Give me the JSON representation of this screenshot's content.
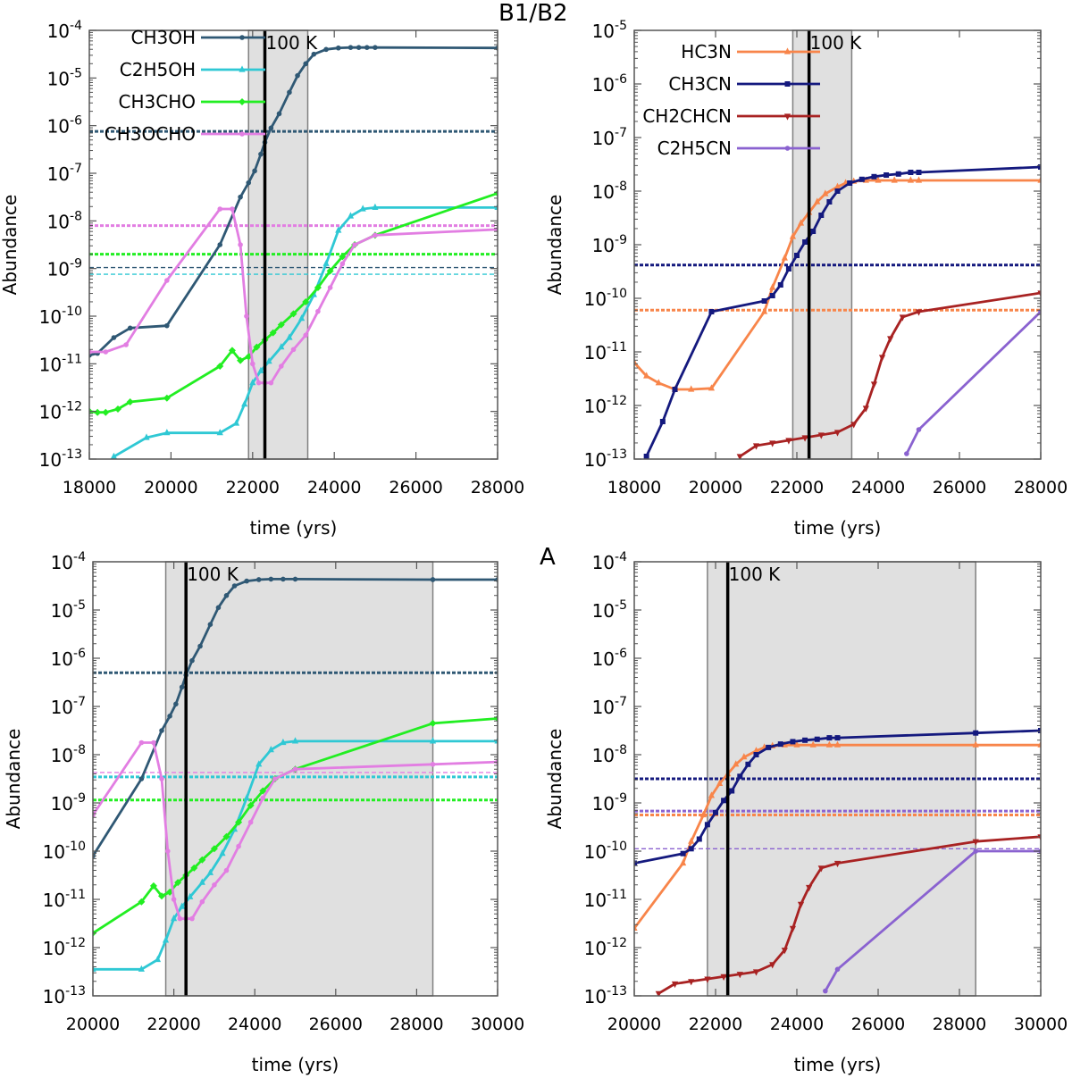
{
  "figure": {
    "group_label_top": "B1/B2",
    "group_label_bottom": "A"
  },
  "colors": {
    "CH3OH": "#2f5874",
    "C2H5OH": "#2fc8d4",
    "CH3CHO": "#22ee22",
    "CH3OCHO": "#e27ee2",
    "HC3N": "#f8854a",
    "CH3CN": "#14197e",
    "CH2CHCN": "#a82222",
    "C2H5CN": "#8a62d0",
    "shade": "#e0e0e0",
    "frame": "#555555"
  },
  "chart_data": [
    {
      "id": "top-left",
      "type": "line",
      "xlabel": "time (yrs)",
      "ylabel": "Abundance",
      "xlim": [
        18000,
        28000
      ],
      "ylim_exp": [
        -13,
        -4
      ],
      "xticks": [
        "18000",
        "20000",
        "22000",
        "24000",
        "26000",
        "28000"
      ],
      "yticks_exp": [
        "-13",
        "-12",
        "-11",
        "-10",
        "-9",
        "-8",
        "-7",
        "-6",
        "-5",
        "-4"
      ],
      "shade": [
        21900,
        23350
      ],
      "vline": 22300,
      "vline_label": "100 K",
      "legend": [
        "CH3OH",
        "C2H5OH",
        "CH3CHO",
        "CH3OCHO"
      ],
      "series": [
        {
          "name": "CH3OH",
          "x": [
            18000,
            18200,
            18600,
            19000,
            19900,
            21200,
            21700,
            21900,
            22050,
            22200,
            22300,
            22450,
            22650,
            22900,
            23100,
            23300,
            23500,
            23800,
            24100,
            24400,
            24600,
            24800,
            25000,
            28000
          ],
          "logy": [
            -10.82,
            -10.78,
            -10.45,
            -10.25,
            -10.2,
            -8.5,
            -7.5,
            -7.2,
            -6.95,
            -6.6,
            -6.35,
            -6.05,
            -5.75,
            -5.3,
            -4.95,
            -4.7,
            -4.5,
            -4.4,
            -4.37,
            -4.36,
            -4.36,
            -4.36,
            -4.36,
            -4.37
          ]
        },
        {
          "name": "C2H5OH",
          "x": [
            18600,
            19400,
            19900,
            21200,
            21600,
            21800,
            22000,
            22200,
            22400,
            22700,
            22900,
            23200,
            23500,
            23800,
            24100,
            24400,
            24700,
            25000,
            28000
          ],
          "logy": [
            -12.95,
            -12.55,
            -12.45,
            -12.45,
            -12.25,
            -11.85,
            -11.4,
            -11.15,
            -10.95,
            -10.65,
            -10.45,
            -10.05,
            -9.55,
            -8.9,
            -8.2,
            -7.9,
            -7.75,
            -7.72,
            -7.72
          ]
        },
        {
          "name": "CH3CHO",
          "x": [
            18000,
            18200,
            18400,
            18700,
            19000,
            19900,
            21200,
            21500,
            21700,
            21900,
            22100,
            22300,
            22500,
            22700,
            23000,
            23300,
            23600,
            23900,
            24200,
            24500,
            25000,
            28000
          ],
          "logy": [
            -12.0,
            -12.02,
            -12.02,
            -11.95,
            -11.8,
            -11.72,
            -11.05,
            -10.72,
            -10.93,
            -10.85,
            -10.65,
            -10.5,
            -10.35,
            -10.18,
            -9.95,
            -9.7,
            -9.4,
            -9.05,
            -8.75,
            -8.5,
            -8.3,
            -7.42
          ]
        },
        {
          "name": "CH3OCHO",
          "x": [
            18000,
            18400,
            18900,
            19900,
            21200,
            21500,
            21700,
            21850,
            22000,
            22150,
            22300,
            22450,
            22700,
            23000,
            23300,
            23600,
            23900,
            24200,
            24500,
            25000,
            28000
          ],
          "logy": [
            -10.75,
            -10.75,
            -10.6,
            -9.25,
            -7.75,
            -7.75,
            -8.5,
            -10.0,
            -11.0,
            -11.4,
            -11.4,
            -11.4,
            -11.05,
            -10.7,
            -10.4,
            -9.9,
            -9.4,
            -8.9,
            -8.5,
            -8.3,
            -8.18
          ]
        }
      ],
      "hlines": [
        {
          "series": "CH3OH",
          "logy": -6.12,
          "style": "dashed-thick"
        },
        {
          "series": "CH3OCHO",
          "logy": -8.1,
          "style": "dashed-thick"
        },
        {
          "series": "CH3CHO",
          "logy": -8.7,
          "style": "dashed-thick"
        },
        {
          "series": "CH3OH",
          "logy": -8.98,
          "style": "dashed-thin"
        },
        {
          "series": "C2H5OH",
          "logy": -9.12,
          "style": "dashed-thin"
        }
      ]
    },
    {
      "id": "top-right",
      "type": "line",
      "xlabel": "time (yrs)",
      "ylabel": "Abundance",
      "xlim": [
        18000,
        28000
      ],
      "ylim_exp": [
        -13,
        -5
      ],
      "xticks": [
        "18000",
        "20000",
        "22000",
        "24000",
        "26000",
        "28000"
      ],
      "yticks_exp": [
        "-13",
        "-12",
        "-11",
        "-10",
        "-9",
        "-8",
        "-7",
        "-6",
        "-5"
      ],
      "shade": [
        21900,
        23350
      ],
      "vline": 22300,
      "vline_label": "100 K",
      "legend": [
        "HC3N",
        "CH3CN",
        "CH2CHCN",
        "C2H5CN"
      ],
      "series": [
        {
          "name": "HC3N",
          "x": [
            18000,
            18300,
            18600,
            19000,
            19400,
            19900,
            21200,
            21400,
            21700,
            21900,
            22100,
            22300,
            22500,
            22700,
            23000,
            23200,
            23400,
            23700,
            24000,
            24400,
            24800,
            25000,
            28000
          ],
          "logy": [
            -11.2,
            -11.45,
            -11.58,
            -11.7,
            -11.7,
            -11.68,
            -10.25,
            -9.8,
            -9.25,
            -8.85,
            -8.6,
            -8.4,
            -8.2,
            -8.05,
            -7.92,
            -7.85,
            -7.82,
            -7.8,
            -7.8,
            -7.8,
            -7.8,
            -7.8,
            -7.8
          ]
        },
        {
          "name": "CH3CN",
          "x": [
            18300,
            18700,
            19000,
            19900,
            21200,
            21400,
            21600,
            21800,
            22000,
            22200,
            22400,
            22600,
            22800,
            23000,
            23300,
            23600,
            23900,
            24200,
            24500,
            24800,
            25000,
            28000
          ],
          "logy": [
            -12.95,
            -12.3,
            -11.7,
            -10.25,
            -10.05,
            -9.95,
            -9.75,
            -9.45,
            -9.2,
            -8.95,
            -8.75,
            -8.45,
            -8.2,
            -8.0,
            -7.85,
            -7.78,
            -7.73,
            -7.7,
            -7.68,
            -7.65,
            -7.65,
            -7.55
          ]
        },
        {
          "name": "CH2CHCN",
          "x": [
            20600,
            21000,
            21400,
            21800,
            22200,
            22600,
            23000,
            23400,
            23700,
            23900,
            24100,
            24300,
            24600,
            25000,
            28000
          ],
          "logy": [
            -12.95,
            -12.75,
            -12.7,
            -12.65,
            -12.6,
            -12.55,
            -12.5,
            -12.35,
            -12.05,
            -11.6,
            -11.1,
            -10.75,
            -10.35,
            -10.25,
            -9.9
          ]
        },
        {
          "name": "C2H5CN",
          "x": [
            24700,
            25000,
            28000
          ],
          "logy": [
            -12.9,
            -12.45,
            -10.25
          ]
        }
      ],
      "hlines": [
        {
          "series": "CH3CN",
          "logy": -9.38,
          "style": "dashed-thick"
        },
        {
          "series": "HC3N",
          "logy": -10.22,
          "style": "dashed-thick"
        }
      ]
    },
    {
      "id": "bottom-left",
      "type": "line",
      "xlabel": "time (yrs)",
      "ylabel": "Abundance",
      "xlim": [
        20000,
        30000
      ],
      "ylim_exp": [
        -13,
        -4
      ],
      "xticks": [
        "20000",
        "22000",
        "24000",
        "26000",
        "28000",
        "30000"
      ],
      "yticks_exp": [
        "-13",
        "-12",
        "-11",
        "-10",
        "-9",
        "-8",
        "-7",
        "-6",
        "-5",
        "-4"
      ],
      "shade": [
        21800,
        28400
      ],
      "vline": 22300,
      "vline_label": "100 K",
      "legend": [],
      "series": [
        {
          "name": "CH3OH",
          "x": [
            20000,
            21200,
            21700,
            21900,
            22050,
            22200,
            22300,
            22450,
            22650,
            22900,
            23100,
            23300,
            23500,
            23800,
            24100,
            24400,
            24700,
            25000,
            28400,
            30000
          ],
          "logy": [
            -10.1,
            -8.5,
            -7.5,
            -7.2,
            -6.95,
            -6.6,
            -6.35,
            -6.05,
            -5.75,
            -5.3,
            -4.95,
            -4.7,
            -4.5,
            -4.4,
            -4.37,
            -4.36,
            -4.36,
            -4.36,
            -4.37,
            -4.37
          ]
        },
        {
          "name": "C2H5OH",
          "x": [
            20000,
            21200,
            21600,
            21800,
            22000,
            22200,
            22400,
            22700,
            22900,
            23200,
            23500,
            23800,
            24100,
            24400,
            24700,
            25000,
            28400,
            30000
          ],
          "logy": [
            -12.45,
            -12.45,
            -12.25,
            -11.85,
            -11.4,
            -11.15,
            -10.95,
            -10.65,
            -10.45,
            -10.05,
            -9.55,
            -8.9,
            -8.2,
            -7.9,
            -7.75,
            -7.72,
            -7.72,
            -7.72
          ]
        },
        {
          "name": "CH3CHO",
          "x": [
            20000,
            21200,
            21500,
            21700,
            21900,
            22100,
            22300,
            22500,
            22700,
            23000,
            23300,
            23600,
            23900,
            24200,
            24500,
            25000,
            28400,
            30000
          ],
          "logy": [
            -11.7,
            -11.05,
            -10.72,
            -10.93,
            -10.85,
            -10.65,
            -10.5,
            -10.35,
            -10.18,
            -9.95,
            -9.7,
            -9.4,
            -9.05,
            -8.75,
            -8.5,
            -8.3,
            -7.35,
            -7.25
          ]
        },
        {
          "name": "CH3OCHO",
          "x": [
            20000,
            21200,
            21500,
            21700,
            21850,
            22000,
            22150,
            22300,
            22450,
            22700,
            23000,
            23300,
            23600,
            23900,
            24200,
            24500,
            25000,
            28400,
            30000
          ],
          "logy": [
            -9.25,
            -7.75,
            -7.75,
            -8.5,
            -10.0,
            -11.0,
            -11.4,
            -11.4,
            -11.4,
            -11.05,
            -10.7,
            -10.4,
            -9.9,
            -9.4,
            -8.9,
            -8.5,
            -8.3,
            -8.2,
            -8.15
          ]
        }
      ],
      "hlines": [
        {
          "series": "CH3OH",
          "logy": -6.3,
          "style": "dashed-thick"
        },
        {
          "series": "CH3OCHO",
          "logy": -8.37,
          "style": "dashed-thin"
        },
        {
          "series": "C2H5OH",
          "logy": -8.46,
          "style": "dashed-thick"
        },
        {
          "series": "CH3CHO",
          "logy": -8.94,
          "style": "dashed-thick"
        }
      ]
    },
    {
      "id": "bottom-right",
      "type": "line",
      "xlabel": "time (yrs)",
      "ylabel": "Abundance",
      "xlim": [
        20000,
        30000
      ],
      "ylim_exp": [
        -13,
        -4
      ],
      "xticks": [
        "20000",
        "22000",
        "24000",
        "26000",
        "28000",
        "30000"
      ],
      "yticks_exp": [
        "-13",
        "-12",
        "-11",
        "-10",
        "-9",
        "-8",
        "-7",
        "-6",
        "-5",
        "-4"
      ],
      "shade": [
        21800,
        28400
      ],
      "vline": 22300,
      "vline_label": "100 K",
      "legend": [],
      "series": [
        {
          "name": "HC3N",
          "x": [
            20000,
            21200,
            21400,
            21700,
            21900,
            22100,
            22300,
            22500,
            22700,
            23000,
            23200,
            23400,
            23700,
            24000,
            24400,
            24800,
            25000,
            28400,
            30000
          ],
          "logy": [
            -11.6,
            -10.25,
            -9.8,
            -9.25,
            -8.85,
            -8.6,
            -8.4,
            -8.2,
            -8.05,
            -7.92,
            -7.85,
            -7.82,
            -7.8,
            -7.8,
            -7.8,
            -7.8,
            -7.8,
            -7.8,
            -7.8
          ]
        },
        {
          "name": "CH3CN",
          "x": [
            20000,
            21200,
            21400,
            21600,
            21800,
            22000,
            22200,
            22400,
            22600,
            22800,
            23000,
            23300,
            23600,
            23900,
            24200,
            24500,
            24800,
            25000,
            28400,
            30000
          ],
          "logy": [
            -10.25,
            -10.05,
            -9.95,
            -9.75,
            -9.45,
            -9.2,
            -8.95,
            -8.75,
            -8.45,
            -8.2,
            -8.0,
            -7.85,
            -7.78,
            -7.73,
            -7.7,
            -7.68,
            -7.65,
            -7.65,
            -7.55,
            -7.5
          ]
        },
        {
          "name": "CH2CHCN",
          "x": [
            20600,
            21000,
            21400,
            21800,
            22200,
            22600,
            23000,
            23400,
            23700,
            23900,
            24100,
            24300,
            24600,
            25000,
            28400,
            30000
          ],
          "logy": [
            -12.95,
            -12.75,
            -12.7,
            -12.65,
            -12.6,
            -12.55,
            -12.5,
            -12.35,
            -12.05,
            -11.6,
            -11.1,
            -10.75,
            -10.35,
            -10.25,
            -9.8,
            -9.7
          ]
        },
        {
          "name": "C2H5CN",
          "x": [
            24700,
            25000,
            28400,
            30000
          ],
          "logy": [
            -12.9,
            -12.45,
            -10.0,
            -10.0
          ]
        }
      ],
      "hlines": [
        {
          "series": "CH3CN",
          "logy": -8.5,
          "style": "dashed-thick"
        },
        {
          "series": "C2H5CN",
          "logy": -9.17,
          "style": "dashed-thick"
        },
        {
          "series": "HC3N",
          "logy": -9.25,
          "style": "dashed-thick"
        },
        {
          "series": "C2H5CN",
          "logy": -9.95,
          "style": "dashed-thin"
        }
      ]
    }
  ]
}
